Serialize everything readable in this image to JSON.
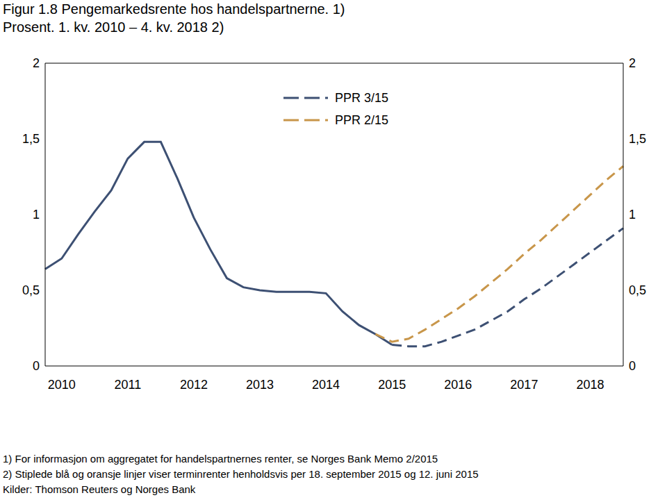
{
  "chart_data": {
    "type": "line",
    "title": "Figur 1.8 Pengemarkedsrente hos handelspartnerne. 1)",
    "subtitle": "Prosent. 1. kv. 2010 – 4. kv. 2018 2)",
    "notes": [
      "1) For informasjon om aggregatet for handelspartnernes renter, se Norges Bank Memo 2/2015",
      "2) Stiplede blå og oransje linjer viser terminrenter henholdsvis per 18. september 2015 og 12. juni 2015",
      "Kilder: Thomson Reuters og Norges Bank"
    ],
    "categories": [
      null,
      "2010",
      null,
      null,
      null,
      "2011",
      null,
      null,
      null,
      "2012",
      null,
      null,
      null,
      "2013",
      null,
      null,
      null,
      "2014",
      null,
      null,
      null,
      "2015",
      null,
      null,
      null,
      "2016",
      null,
      null,
      null,
      "2017",
      null,
      null,
      null,
      "2018",
      null,
      null
    ],
    "ylim": [
      0,
      2
    ],
    "yticks": [
      0,
      {
        "value": 0.5,
        "label": "0,5"
      },
      1,
      {
        "value": 1.5,
        "label": "1,5"
      },
      2
    ],
    "y2lim": [
      0,
      2
    ],
    "y2ticks": [
      0,
      {
        "value": 0.5,
        "label": "0,5"
      },
      1,
      {
        "value": 1.5,
        "label": "1,5"
      },
      2
    ],
    "grid": false,
    "series": [
      {
        "color": "#3d5073",
        "line_style": "solid",
        "values": [
          0.64,
          0.71,
          0.87,
          1.02,
          1.16,
          1.37,
          1.48,
          1.48,
          1.24,
          0.98,
          0.77,
          0.58,
          0.52,
          0.5,
          0.49,
          0.49,
          0.49,
          0.48,
          0.36,
          0.27,
          0.21,
          0.14,
          null,
          null,
          null,
          null,
          null,
          null,
          null,
          null,
          null,
          null,
          null,
          null,
          null,
          null
        ]
      },
      {
        "name": "PPR 3/15",
        "color": "#3d5073",
        "line_style": "dashed",
        "values": [
          null,
          null,
          null,
          null,
          null,
          null,
          null,
          null,
          null,
          null,
          null,
          null,
          null,
          null,
          null,
          null,
          null,
          null,
          null,
          null,
          null,
          0.14,
          0.13,
          0.13,
          0.16,
          0.2,
          0.24,
          0.3,
          0.36,
          0.44,
          0.51,
          0.59,
          0.67,
          0.75,
          0.83,
          0.91
        ]
      },
      {
        "name": "PPR 2/15",
        "color": "#c8964a",
        "line_style": "dashed",
        "values": [
          null,
          null,
          null,
          null,
          null,
          null,
          null,
          null,
          null,
          null,
          null,
          null,
          null,
          null,
          null,
          null,
          null,
          null,
          null,
          null,
          0.21,
          0.16,
          0.18,
          0.24,
          0.31,
          0.38,
          0.46,
          0.55,
          0.64,
          0.74,
          0.83,
          0.93,
          1.03,
          1.13,
          1.23,
          1.32
        ]
      }
    ]
  }
}
